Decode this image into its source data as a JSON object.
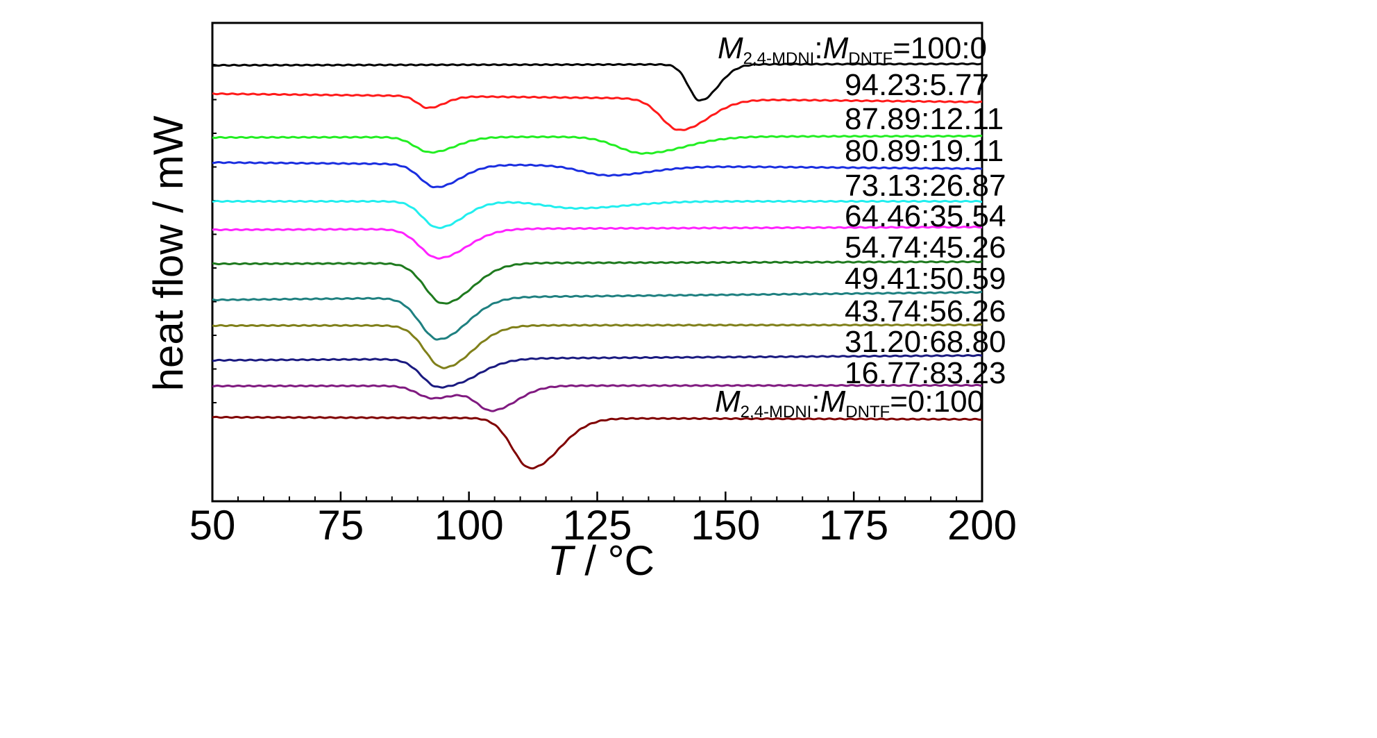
{
  "chart_data": {
    "type": "line",
    "title": "",
    "xlabel_var": "T",
    "xlabel_unit": " / °C",
    "ylabel": "heat flow / mW",
    "xlim": [
      50,
      200
    ],
    "x_ticks": [
      50,
      75,
      100,
      125,
      150,
      175,
      200
    ],
    "x_tick_labels": [
      "50",
      "75",
      "100",
      "125",
      "150",
      "175",
      "200"
    ],
    "y_ticks_unlabeled": true,
    "grid": false,
    "series": [
      {
        "name": "M2,4-MDNI:MDNTF=100:0",
        "label_prefix": "M",
        "label_sub1": "2,4-MDNI",
        "label_mid": ":M",
        "label_sub2": "DNTF",
        "label_suffix": "=100:0",
        "color": "#000000",
        "baseline_left": 94,
        "baseline_right": 92,
        "dips": [
          {
            "x": 145,
            "depth": 52,
            "width": 2.2
          }
        ]
      },
      {
        "name": "94.23:5.77",
        "color": "#ff1a1a",
        "baseline_left": 135,
        "baseline_right": 147,
        "dips": [
          {
            "x": 92,
            "depth": 17,
            "width": 2
          },
          {
            "x": 141,
            "depth": 45,
            "width": 3.5
          }
        ]
      },
      {
        "name": "87.89:12.11",
        "color": "#22ee22",
        "baseline_left": 198,
        "baseline_right": 196,
        "dips": [
          {
            "x": 92.5,
            "depth": 22,
            "width": 3
          },
          {
            "x": 134,
            "depth": 24,
            "width": 5
          }
        ]
      },
      {
        "name": "80.89:19.11",
        "color": "#1a2ee0",
        "baseline_left": 234,
        "baseline_right": 243,
        "dips": [
          {
            "x": 93.5,
            "depth": 33,
            "width": 3
          },
          {
            "x": 127,
            "depth": 14,
            "width": 5
          }
        ]
      },
      {
        "name": "73.13:26.87",
        "color": "#22eeee",
        "baseline_left": 290,
        "baseline_right": 290,
        "dips": [
          {
            "x": 94,
            "depth": 38,
            "width": 3
          },
          {
            "x": 121,
            "depth": 10,
            "width": 6
          }
        ]
      },
      {
        "name": "64.46:35.54",
        "color": "#ff22ff",
        "baseline_left": 331,
        "baseline_right": 327,
        "dips": [
          {
            "x": 94,
            "depth": 42,
            "width": 3.5
          }
        ]
      },
      {
        "name": "54.74:45.26",
        "color": "#1e7a1e",
        "baseline_left": 380,
        "baseline_right": 377,
        "dips": [
          {
            "x": 95,
            "depth": 58,
            "width": 3.5
          }
        ]
      },
      {
        "name": "49.41:50.59",
        "color": "#1e8080",
        "baseline_left": 432,
        "baseline_right": 421,
        "dips": [
          {
            "x": 94,
            "depth": 60,
            "width": 3.5
          }
        ]
      },
      {
        "name": "43.74:56.26",
        "color": "#80801a",
        "baseline_left": 469,
        "baseline_right": 468,
        "dips": [
          {
            "x": 95,
            "depth": 61,
            "width": 3.5
          }
        ]
      },
      {
        "name": "31.20:68.80",
        "color": "#1a1a80",
        "baseline_left": 519,
        "baseline_right": 512,
        "dips": [
          {
            "x": 94,
            "depth": 40,
            "width": 3.2
          },
          {
            "x": 101,
            "depth": 10,
            "width": 3
          }
        ]
      },
      {
        "name": "16.77:83.23",
        "color": "#801a80",
        "baseline_left": 556,
        "baseline_right": 555,
        "dips": [
          {
            "x": 93,
            "depth": 18,
            "width": 3
          },
          {
            "x": 104.5,
            "depth": 35,
            "width": 3
          }
        ]
      },
      {
        "name": "M2,4-MDNI:MDNTF=0:100",
        "label_prefix": "M",
        "label_sub1": "2,4-MDNI",
        "label_mid": ":M",
        "label_sub2": "DNTF",
        "label_suffix": "=0:100",
        "color": "#800000",
        "baseline_left": 601,
        "baseline_right": 604,
        "dips": [
          {
            "x": 112,
            "depth": 72,
            "width": 3.5
          }
        ]
      }
    ]
  }
}
